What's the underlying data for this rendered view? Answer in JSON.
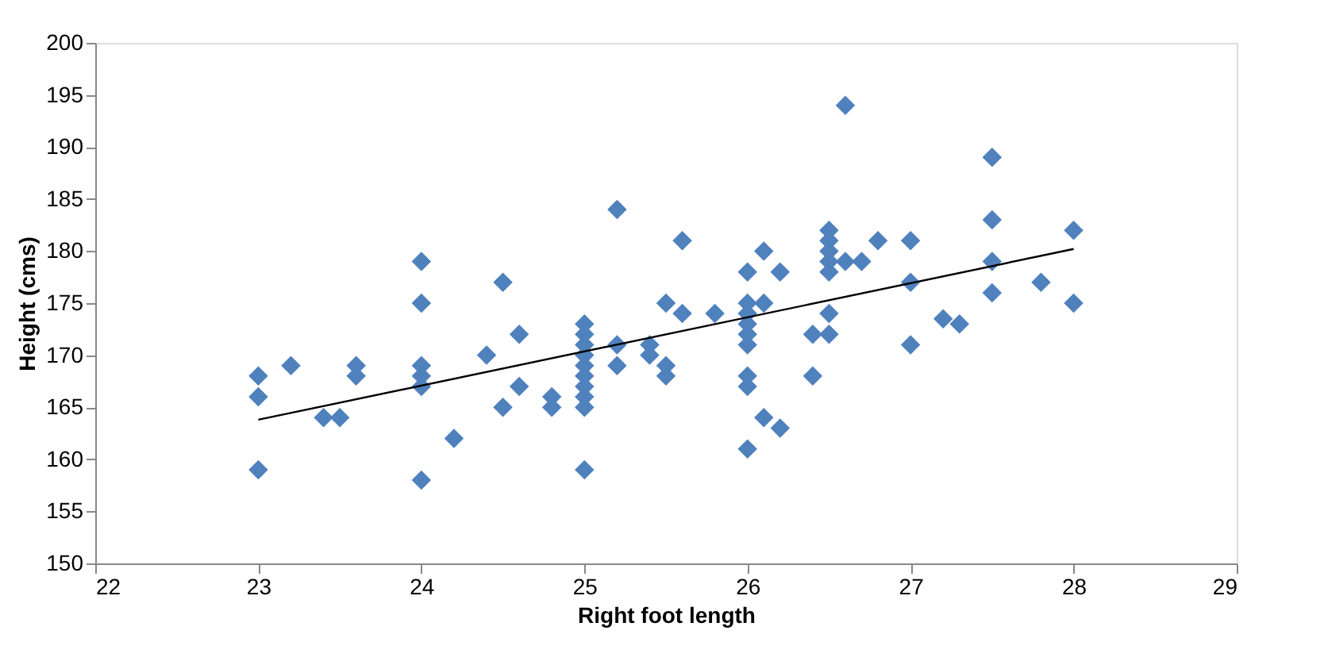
{
  "chart_data": {
    "type": "scatter",
    "xlabel": "Right foot length",
    "ylabel": "Height (cms)",
    "xlim": [
      22,
      29
    ],
    "xticks": [
      22,
      23,
      24,
      25,
      26,
      27,
      28,
      29
    ],
    "ylim": [
      150,
      200
    ],
    "yticks": [
      150,
      155,
      160,
      165,
      170,
      175,
      180,
      185,
      190,
      195,
      200
    ],
    "series": [
      {
        "color": "#4f81bd",
        "marker": "diamond",
        "x": [
          23,
          23,
          23,
          23.2,
          23.4,
          23.5,
          23.6,
          23.6,
          24,
          24,
          24,
          24,
          24,
          24,
          24.2,
          24.4,
          24.5,
          24.5,
          24.6,
          24.6,
          24.8,
          24.8,
          25,
          25,
          25,
          25,
          25,
          25,
          25,
          25,
          25,
          25,
          25.2,
          25.2,
          25.2,
          25.4,
          25.4,
          25.5,
          25.5,
          25.5,
          25.6,
          25.6,
          25.8,
          26,
          26,
          26,
          26,
          26,
          26,
          26,
          26,
          26,
          26.1,
          26.1,
          26.1,
          26.2,
          26.2,
          26.4,
          26.4,
          26.5,
          26.5,
          26.5,
          26.5,
          26.5,
          26.5,
          26.5,
          26.6,
          26.6,
          26.7,
          26.8,
          27,
          27,
          27,
          27.2,
          27.3,
          27.5,
          27.5,
          27.5,
          27.5,
          27.8,
          28,
          28
        ],
        "values": [
          168,
          166,
          159,
          169,
          164,
          164,
          169,
          168,
          179,
          175,
          169,
          168,
          167,
          158,
          162,
          170,
          177,
          165,
          172,
          167,
          166,
          165,
          173,
          172,
          171,
          170,
          169,
          168,
          167,
          166,
          165,
          159,
          184,
          171,
          169,
          171,
          170,
          175,
          169,
          168,
          181,
          174,
          174,
          178,
          175,
          174,
          173,
          172,
          171,
          168,
          167,
          161,
          180,
          175,
          164,
          178,
          163,
          172,
          168,
          182,
          181,
          180,
          179,
          178,
          174,
          172,
          194,
          179,
          179,
          181,
          181,
          177,
          171,
          173.5,
          173,
          189,
          183,
          179,
          176,
          177,
          182,
          175
        ]
      },
      {
        "type": "line",
        "color": "#000000",
        "line_style": "solid",
        "marker": "none",
        "x": [
          23,
          28
        ],
        "values": [
          163.8,
          180.2
        ]
      }
    ]
  }
}
